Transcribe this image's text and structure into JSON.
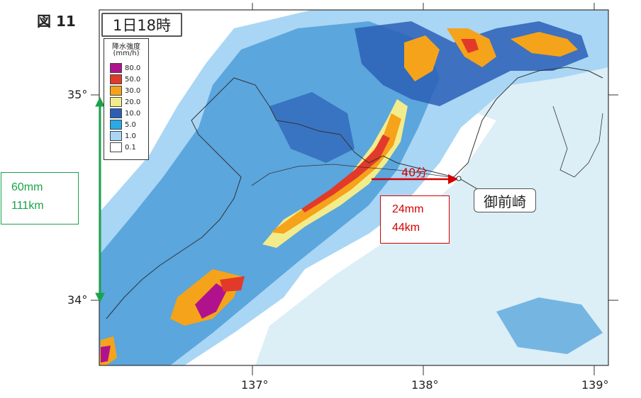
{
  "figure": {
    "label": "図 11",
    "time": "1日18時"
  },
  "legend": {
    "title_line1": "降水強度",
    "title_line2": "(mm/h)",
    "items": [
      {
        "label": "80.0",
        "color": "#b0128e"
      },
      {
        "label": "50.0",
        "color": "#e23a2a"
      },
      {
        "label": "30.0",
        "color": "#f5a31a"
      },
      {
        "label": "20.0",
        "color": "#f3ec8c"
      },
      {
        "label": "10.0",
        "color": "#2b5fb6"
      },
      {
        "label": "5.0",
        "color": "#29a9e8"
      },
      {
        "label": "1.0",
        "color": "#a9d6f5"
      },
      {
        "label": "0.1",
        "color": "#ffffff"
      }
    ]
  },
  "axes": {
    "lat_labels": [
      "35°",
      "34°"
    ],
    "lon_labels": [
      "137°",
      "138°",
      "139°"
    ]
  },
  "annotations": {
    "green": {
      "line1": "60mm",
      "line2": "111km",
      "color": "#1aa34a"
    },
    "red": {
      "arrow_text": "40分",
      "line1": "24mm",
      "line2": "44km",
      "color": "#d40000"
    },
    "place": "御前崎"
  },
  "colors": {
    "sea_light": "#dceef6",
    "rain_weak": "#a9d6f5",
    "rain_moderate": "#5ba6dd",
    "rain_dark": "#2b5fb6"
  }
}
